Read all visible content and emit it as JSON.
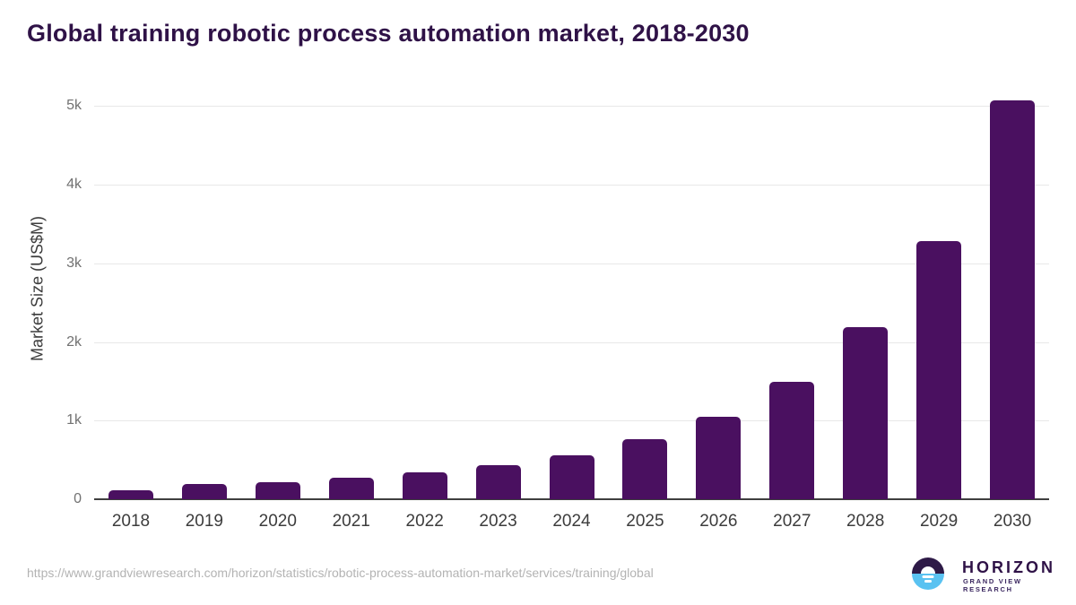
{
  "header": {
    "title": "Global training robotic process automation market, 2018-2030"
  },
  "chart_data": {
    "type": "bar",
    "title": "Global training robotic process automation market, 2018-2030",
    "categories": [
      "2018",
      "2019",
      "2020",
      "2021",
      "2022",
      "2023",
      "2024",
      "2025",
      "2026",
      "2027",
      "2028",
      "2029",
      "2030"
    ],
    "values": [
      115,
      195,
      220,
      275,
      340,
      435,
      560,
      760,
      1050,
      1495,
      2190,
      3285,
      5075
    ],
    "xlabel": "",
    "ylabel": "Market Size (US$M)",
    "ylim": [
      0,
      5000
    ],
    "yticks": {
      "values": [
        0,
        1000,
        2000,
        3000,
        4000,
        5000
      ],
      "labels": [
        "0",
        "1k",
        "2k",
        "3k",
        "4k",
        "5k"
      ]
    },
    "grid": "horizontal",
    "legend": "none",
    "bar_color": "#4a1060"
  },
  "footer": {
    "source_url": "https://www.grandviewresearch.com/horizon/statistics/robotic-process-automation-market/services/training/global",
    "logo": {
      "brand": "HORIZON",
      "subtitle": "GRAND VIEW RESEARCH"
    }
  },
  "colors": {
    "bar": "#4a1060",
    "title_text": "#2f1247",
    "axis_line": "#3f3f3f",
    "gridline": "#e8e8e8",
    "y_tick_text": "#717171",
    "x_tick_text": "#3c3c3c",
    "source_text": "#b3b3b3",
    "logo_blue": "#5ac2f1",
    "logo_dark_purple": "#2e1a47"
  }
}
